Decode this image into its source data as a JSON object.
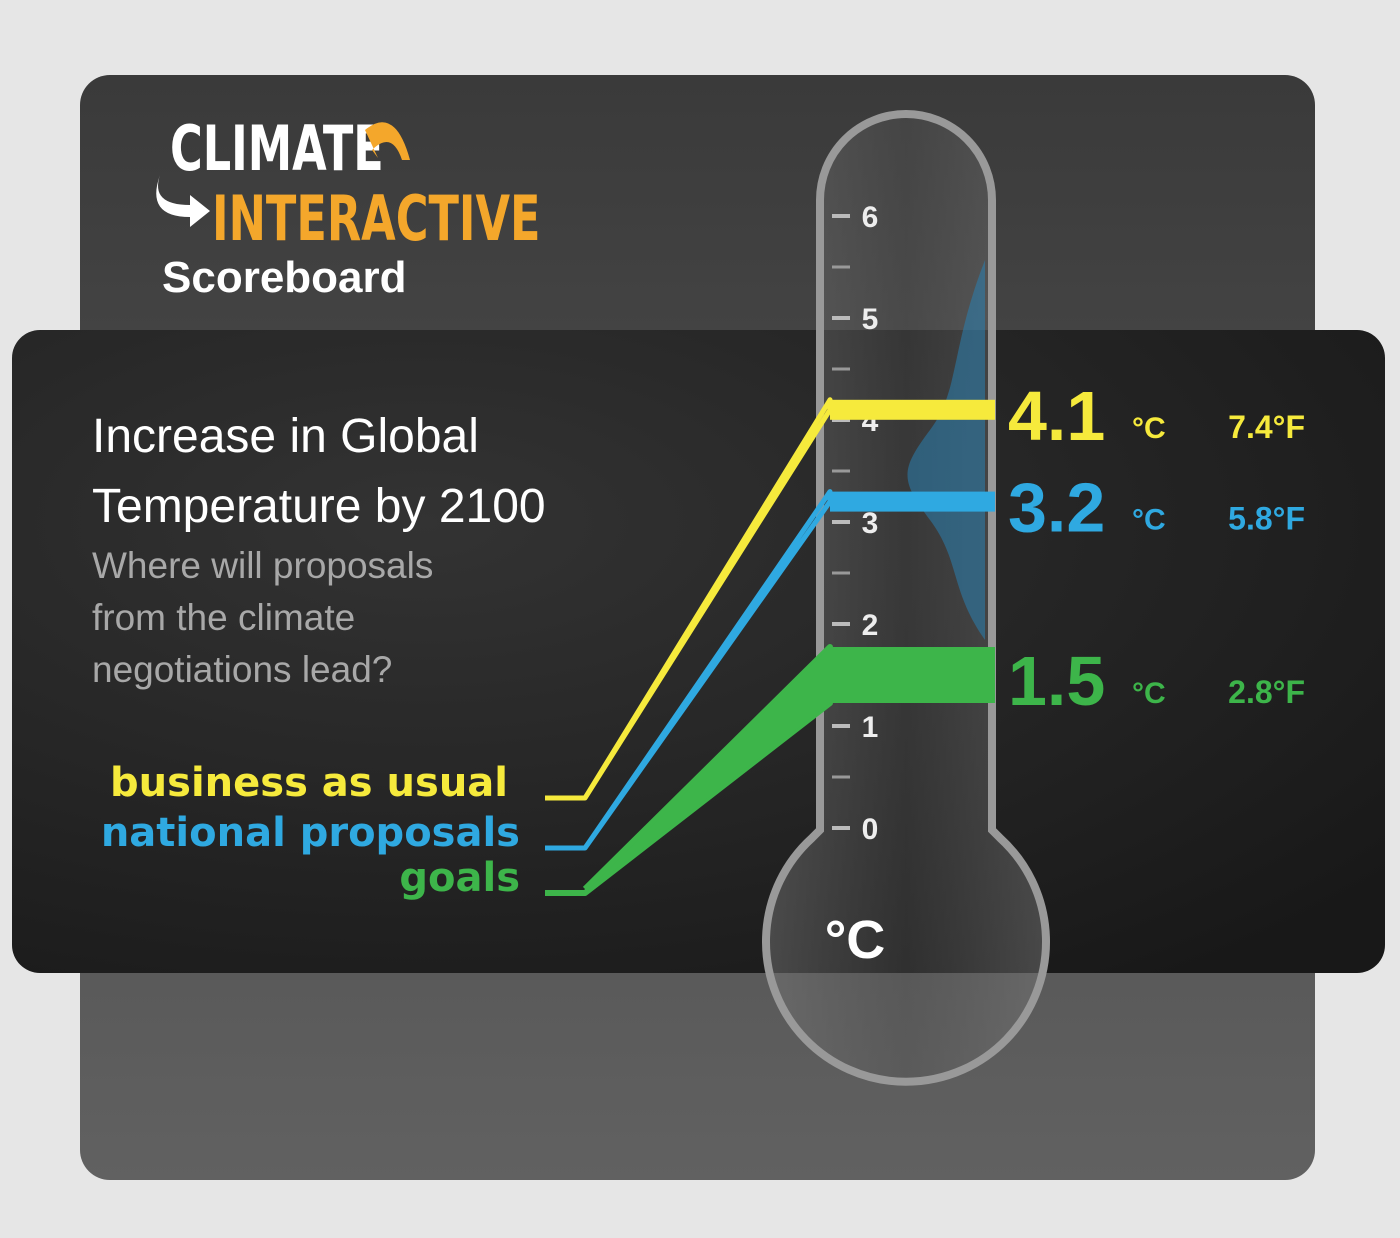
{
  "brand": {
    "line1": "CLIMATE",
    "line2": "INTERACTIVE",
    "product": "Scoreboard"
  },
  "chart_data": {
    "type": "thermometer",
    "title": "Increase in Global Temperature by 2100",
    "subtitle": "Where will proposals from the climate negotiations lead?",
    "ylabel": "°C",
    "ylim": [
      0,
      6
    ],
    "yticks": [
      0,
      1,
      2,
      3,
      4,
      5,
      6
    ],
    "minor_yticks": [
      0.5,
      1.5,
      2.5,
      3.5,
      4.5,
      5.5
    ],
    "series": [
      {
        "name": "business as usual",
        "color": "#f6ea3c",
        "values": [
          4.1
        ],
        "fahrenheit_labels": [
          "7.4°F"
        ]
      },
      {
        "name": "national proposals",
        "color": "#2fa9e1",
        "values": [
          3.2
        ],
        "fahrenheit_labels": [
          "5.8°F"
        ]
      },
      {
        "name": "goals",
        "color": "#3db54a",
        "values": [
          1.5
        ],
        "fahrenheit_labels": [
          "2.8°F"
        ]
      }
    ]
  }
}
